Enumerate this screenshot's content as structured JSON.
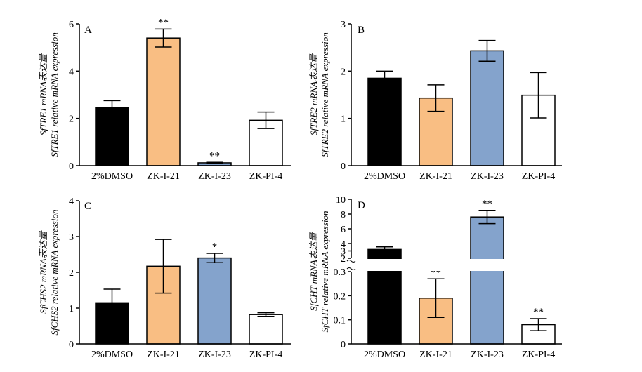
{
  "colors": {
    "2%DMSO": "#000000",
    "ZK-I-21": "#F9BE83",
    "ZK-I-23": "#84A3CC",
    "ZK-PI-4": "#FFFFFF",
    "axis": "#000000"
  },
  "chart_data": [
    {
      "panel": "A",
      "type": "bar",
      "ylabel_line1": "SfTRE1 mRNA表达量",
      "ylabel_line2": "SfTRE1 relative mRNA expression",
      "categories": [
        "2%DMSO",
        "ZK-I-21",
        "ZK-I-23",
        "ZK-PI-4"
      ],
      "values": [
        2.45,
        5.4,
        0.12,
        1.92
      ],
      "errors": [
        0.3,
        0.38,
        0.02,
        0.35
      ],
      "significance": [
        "",
        "**",
        "**",
        ""
      ],
      "ylim": [
        0,
        6
      ],
      "yticks": [
        "0",
        "2",
        "4",
        "6"
      ],
      "ytick_values": [
        0,
        2,
        4,
        6
      ]
    },
    {
      "panel": "B",
      "type": "bar",
      "ylabel_line1": "SfTRE2 mRNA表达量",
      "ylabel_line2": "SfTRE2 relative mRNA expression",
      "categories": [
        "2%DMSO",
        "ZK-I-21",
        "ZK-I-23",
        "ZK-PI-4"
      ],
      "values": [
        1.85,
        1.43,
        2.43,
        1.49
      ],
      "errors": [
        0.15,
        0.28,
        0.22,
        0.48
      ],
      "significance": [
        "",
        "",
        "",
        ""
      ],
      "ylim": [
        0,
        3
      ],
      "yticks": [
        "0",
        "1",
        "2",
        "3"
      ],
      "ytick_values": [
        0,
        1,
        2,
        3
      ]
    },
    {
      "panel": "C",
      "type": "bar",
      "ylabel_line1": "SfCHS2 mRNA表达量",
      "ylabel_line2": "SfCHS2 relative mRNA expression",
      "categories": [
        "2%DMSO",
        "ZK-I-21",
        "ZK-I-23",
        "ZK-PI-4"
      ],
      "values": [
        1.15,
        2.17,
        2.4,
        0.82
      ],
      "errors": [
        0.38,
        0.75,
        0.13,
        0.05
      ],
      "significance": [
        "",
        "",
        "*",
        ""
      ],
      "ylim": [
        0,
        4
      ],
      "yticks": [
        "0",
        "1",
        "2",
        "3",
        "4"
      ],
      "ytick_values": [
        0,
        1,
        2,
        3,
        4
      ]
    },
    {
      "panel": "D",
      "type": "bar",
      "ylabel_line1": "SfCHT mRNA表达量",
      "ylabel_line2": "SfCHT relative mRNA expression",
      "categories": [
        "2%DMSO",
        "ZK-I-21",
        "ZK-I-23",
        "ZK-PI-4"
      ],
      "values": [
        3.2,
        0.19,
        7.6,
        0.08
      ],
      "errors": [
        0.35,
        0.08,
        0.9,
        0.025
      ],
      "significance": [
        "",
        "**",
        "**",
        "**"
      ],
      "broken_axis": {
        "lower_range": [
          0,
          0.3
        ],
        "upper_range": [
          2,
          10
        ]
      },
      "yticks": [
        "0",
        "0.1",
        "0.2",
        "0.3",
        "2",
        "3",
        "4",
        "6",
        "8",
        "10"
      ],
      "ytick_values": [
        0,
        0.1,
        0.2,
        0.3,
        2,
        3,
        4,
        6,
        8,
        10
      ]
    }
  ]
}
